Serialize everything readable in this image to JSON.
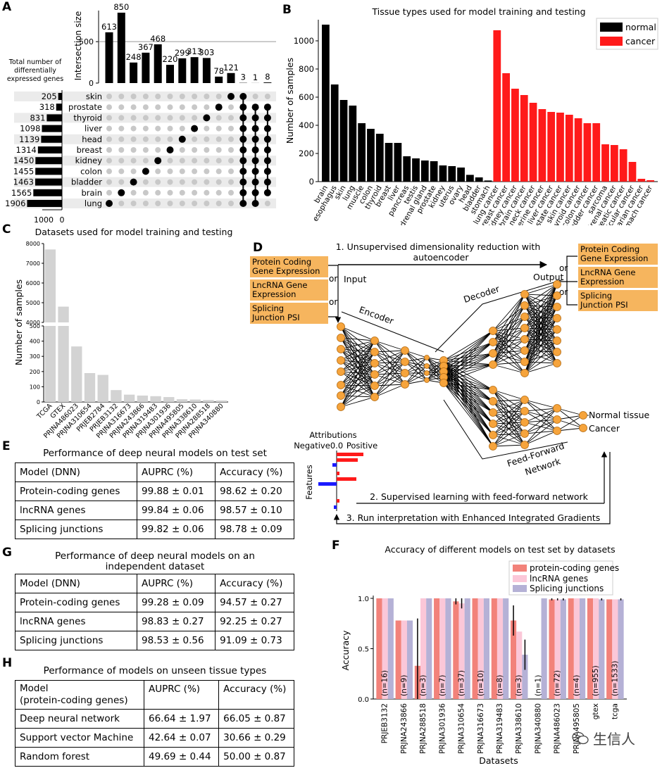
{
  "panels": {
    "a": "A",
    "b": "B",
    "c": "C",
    "d": "D",
    "e": "E",
    "f": "F",
    "g": "G",
    "h": "H"
  },
  "panel_a": {
    "intersection_label": "Intersection size",
    "total_label": [
      "Total number of",
      "differentially",
      "expressed genes"
    ],
    "bottom_tick": "1000",
    "bottom_tick_0": "0",
    "tissues": [
      "skin",
      "prostate",
      "thyroid",
      "liver",
      "head",
      "breast",
      "kidney",
      "colon",
      "bladder",
      "brain",
      "lung"
    ],
    "totals": [
      205,
      318,
      831,
      1098,
      1139,
      1314,
      1450,
      1455,
      1463,
      1565,
      1906
    ],
    "y_ticks": [
      0,
      500
    ],
    "intersections": [
      613,
      850,
      248,
      367,
      468,
      220,
      299,
      313,
      303,
      78,
      121,
      3,
      1,
      8
    ],
    "columns": [
      [
        10
      ],
      [
        9
      ],
      [
        8
      ],
      [
        7
      ],
      [
        6
      ],
      [
        5
      ],
      [
        4
      ],
      [
        3
      ],
      [
        2
      ],
      [
        1
      ],
      [
        0
      ],
      [
        0,
        1,
        2,
        3,
        4,
        5,
        6,
        7,
        8,
        9,
        10
      ],
      [
        1,
        2,
        3,
        4,
        5,
        6,
        7,
        8,
        9,
        10
      ],
      [
        1,
        2,
        3,
        4,
        5,
        6,
        7,
        8,
        9
      ]
    ]
  },
  "panel_b": {
    "title": "Tissue types used for model training and testing",
    "ylabel": "Number of samples",
    "y_ticks": [
      0,
      200,
      400,
      600,
      800,
      1000
    ],
    "legend": [
      {
        "name": "normal",
        "color": "#000000"
      },
      {
        "name": "cancer",
        "color": "#ff1a1a"
      }
    ],
    "normal": {
      "labels": [
        "brain",
        "esophagus",
        "skin",
        "lung",
        "muscle",
        "colon",
        "thyroid",
        "breast",
        "liver",
        "pancreas",
        "testis",
        "adrenal gland",
        "prostate",
        "kidney",
        "uterus",
        "ovary",
        "head",
        "bladder",
        "stomach"
      ],
      "values": [
        1115,
        690,
        580,
        540,
        415,
        375,
        340,
        275,
        275,
        180,
        165,
        150,
        145,
        115,
        110,
        100,
        48,
        30,
        8
      ]
    },
    "cancer": {
      "labels": [
        "lung cancer",
        "breast cancer",
        "kidney cancer",
        "brain cancer",
        "head and neck cancer",
        "uterine cancer",
        "liver cancer",
        "prostate cancer",
        "skin cancer",
        "thyroid cancer",
        "colon cancer",
        "bladder cancer",
        "sarcoma",
        "adrenal cancer",
        "pancreatic cancer",
        "testicular cancer",
        "ovarian cancer",
        "stomach cancer"
      ],
      "values": [
        1075,
        770,
        660,
        615,
        560,
        515,
        495,
        490,
        475,
        450,
        415,
        415,
        265,
        260,
        230,
        140,
        20,
        10
      ]
    }
  },
  "panel_c": {
    "title": "Datasets used for model training and testing",
    "ylabel": "Number of samples",
    "upper_ticks": [
      4000,
      5000,
      6000,
      7000,
      8000
    ],
    "lower_ticks": [
      0,
      100,
      200,
      300,
      400,
      500
    ],
    "labels": [
      "TCGA",
      "GTEX",
      "PRJNA486023",
      "PRJNA310654",
      "PRJEB2784",
      "PRJEB3132",
      "PRJNA316673",
      "PRJNA243866",
      "PRJNA319483",
      "PRJNA301936",
      "PRJNA495805",
      "PRJNA338610",
      "PRJNA288518",
      "PRJNA340880"
    ],
    "values": [
      7700,
      4800,
      365,
      190,
      178,
      78,
      48,
      42,
      38,
      32,
      18,
      16,
      13,
      10
    ]
  },
  "panel_d": {
    "step1": "1. Unsupervised dimensionality reduction with",
    "step1b": "autoencoder",
    "step2": "2. Supervised learning with feed-forward network",
    "step3": "3. Run interpretation with Enhanced Integrated Gradients",
    "inputs": [
      [
        "Protein Coding",
        "Gene Expression"
      ],
      [
        "LncRNA Gene",
        "Expression"
      ],
      [
        "Splicing",
        "Junction PSI"
      ]
    ],
    "outputs": [
      [
        "Protein Coding",
        "Gene Expression"
      ],
      [
        "LncRNA Gene",
        "Expression"
      ],
      [
        "Splicing",
        "Junction PSI"
      ]
    ],
    "or": "or",
    "input_label": "Input",
    "output_label": "Output",
    "encoder": "Encoder",
    "decoder": "Decoder",
    "ffn": [
      "Feed-Forward",
      "Network"
    ],
    "classes": [
      "Normal tissue",
      "Cancer"
    ],
    "attributions": "Attributions",
    "negative": "Negative",
    "zero": "0.0",
    "positive": "Positive",
    "features": "Features"
  },
  "panel_e": {
    "title": "Performance of deep neural models on test set",
    "header": [
      "Model (DNN)",
      "AUPRC (%)",
      "Accuracy (%)"
    ],
    "rows": [
      [
        "Protein-coding genes",
        "99.88 ± 0.01",
        "98.62 ± 0.20"
      ],
      [
        "lncRNA genes",
        "99.84 ± 0.06",
        "98.57 ± 0.10"
      ],
      [
        "Splicing junctions",
        "99.82 ± 0.06",
        "98.78 ± 0.09"
      ]
    ]
  },
  "panel_g": {
    "title": "Performance of deep neural models on an",
    "title2": "independent dataset",
    "header": [
      "Model (DNN)",
      "AUPRC (%)",
      "Accuracy (%)"
    ],
    "rows": [
      [
        "Protein-coding genes",
        "99.28 ± 0.09",
        "94.57 ± 0.27"
      ],
      [
        "lncRNA genes",
        "98.83 ± 0.27",
        "92.25 ± 0.27"
      ],
      [
        "Splicing junctions",
        "98.53 ± 0.56",
        "91.09 ± 0.73"
      ]
    ]
  },
  "panel_h": {
    "title": "Performance of models on unseen tissue types",
    "header": [
      "Model",
      "(protein-coding genes)",
      "AUPRC (%)",
      "Accuracy (%)"
    ],
    "rows": [
      [
        "Deep neural network",
        "66.64 ± 1.97",
        "66.05 ± 0.87"
      ],
      [
        "Support vector Machine",
        "42.64 ± 0.07",
        "30.66 ± 0.29"
      ],
      [
        "Random forest",
        "49.69 ± 0.44",
        "50.00 ± 0.87"
      ]
    ]
  },
  "panel_f": {
    "title": "Accuracy of different models on test set by datasets",
    "ylabel": "Accuracy",
    "xlabel": "Datasets",
    "y_ticks": [
      "0.0",
      "0.5",
      "1.0"
    ],
    "legend": [
      {
        "name": "protein-coding genes",
        "color": "#f2827a"
      },
      {
        "name": "lncRNA genes",
        "color": "#fbc7d8"
      },
      {
        "name": "Splicing junctions",
        "color": "#b5b1d6"
      }
    ],
    "datasets": [
      "PRJEB3132",
      "PRJNA243866",
      "PRJNA288518",
      "PRJNA301936",
      "PRJNA310654",
      "PRJNA316673",
      "PRJNA319483",
      "PRJNA338610",
      "PRJNA340880",
      "PRJNA486023",
      "PRJNA495805",
      "gtex",
      "tcga"
    ],
    "n_labels": [
      "(n=16)",
      "(n=9)",
      "(n=3)",
      "(n=7)",
      "(n=37)",
      "(n=10)",
      "(n=8)",
      "(n=3)",
      "(n=1)",
      "(n=72)",
      "(n=4)",
      "(n=955)",
      "(n=1533)"
    ],
    "pcg": [
      1.0,
      0.78,
      0.33,
      1.0,
      0.97,
      1.0,
      1.0,
      0.78,
      0.0,
      0.99,
      1.0,
      1.0,
      0.99
    ],
    "lnc": [
      1.0,
      0.78,
      1.0,
      1.0,
      0.95,
      1.0,
      1.0,
      0.67,
      0.0,
      0.99,
      1.0,
      1.0,
      0.99
    ],
    "sj": [
      1.0,
      0.78,
      1.0,
      1.0,
      1.0,
      1.0,
      1.0,
      0.44,
      1.0,
      0.99,
      1.0,
      0.99,
      0.99
    ],
    "err": [
      [
        0,
        0,
        0
      ],
      [
        0,
        0,
        0
      ],
      [
        0.47,
        0,
        0
      ],
      [
        0,
        0,
        0
      ],
      [
        0.03,
        0.05,
        0
      ],
      [
        0,
        0,
        0
      ],
      [
        0,
        0,
        0
      ],
      [
        0.15,
        0,
        0.15
      ],
      [
        0,
        0,
        0
      ],
      [
        0.01,
        0.01,
        0.01
      ],
      [
        0,
        0,
        0
      ],
      [
        0,
        0,
        0.01
      ],
      [
        0,
        0,
        0.01
      ]
    ]
  },
  "watermark": "生信人"
}
